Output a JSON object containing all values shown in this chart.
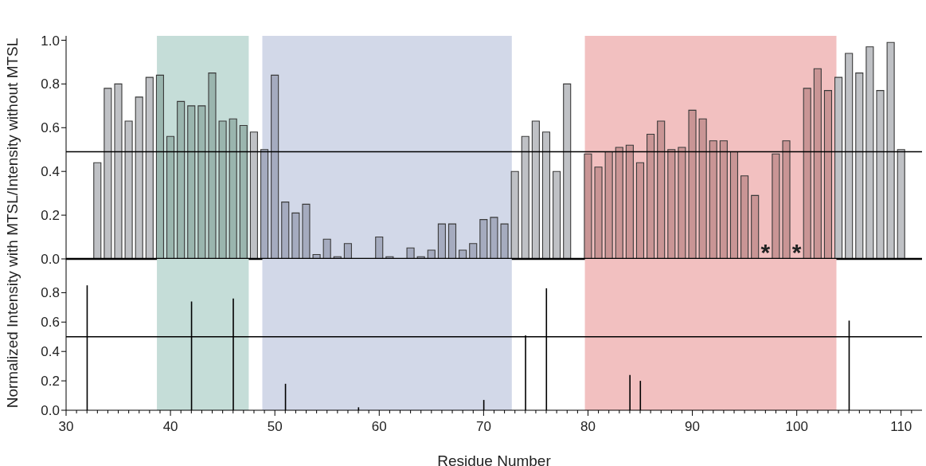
{
  "chart_data": [
    {
      "type": "bar",
      "ylabel": "Normalized Intensity with MTSL/Intensity without MTSL",
      "tick_labels": "y",
      "xlim": [
        30,
        112
      ],
      "ylim": [
        0,
        1.02
      ],
      "yticks": [
        {
          "value": 0,
          "label": "0.0"
        },
        {
          "value": 0.2,
          "label": "0.2"
        },
        {
          "value": 0.4,
          "label": "0.4"
        },
        {
          "value": 0.6,
          "label": "0.6"
        },
        {
          "value": 0.8,
          "label": "0.8"
        },
        {
          "value": 1,
          "label": "1.0"
        }
      ],
      "x": [
        33,
        34,
        35,
        36,
        37,
        38,
        39,
        40,
        41,
        42,
        43,
        44,
        45,
        46,
        47,
        48,
        49,
        50,
        51,
        52,
        53,
        54,
        55,
        56,
        57,
        60,
        61,
        63,
        64,
        65,
        66,
        67,
        68,
        69,
        70,
        71,
        72,
        73,
        74,
        75,
        76,
        77,
        78,
        80,
        81,
        82,
        83,
        84,
        85,
        86,
        87,
        88,
        89,
        90,
        91,
        92,
        93,
        94,
        95,
        96,
        98,
        99,
        101,
        102,
        103,
        104,
        105,
        106,
        107,
        108,
        109,
        110
      ],
      "series": [
        {
          "values": [
            0.44,
            0.78,
            0.8,
            0.63,
            0.74,
            0.83,
            0.84,
            0.56,
            0.72,
            0.7,
            0.7,
            0.85,
            0.63,
            0.64,
            0.61,
            0.58,
            0.5,
            0.84,
            0.26,
            0.21,
            0.25,
            0.02,
            0.09,
            0.01,
            0.07,
            0.1,
            0.01,
            0.05,
            0.01,
            0.04,
            0.16,
            0.16,
            0.04,
            0.07,
            0.18,
            0.19,
            0.16,
            0.4,
            0.56,
            0.63,
            0.58,
            0.4,
            0.8,
            0.48,
            0.42,
            0.49,
            0.51,
            0.52,
            0.44,
            0.57,
            0.63,
            0.5,
            0.51,
            0.68,
            0.64,
            0.54,
            0.54,
            0.49,
            0.38,
            0.29,
            0.48,
            0.54,
            0.78,
            0.87,
            0.77,
            0.83,
            0.94,
            0.85,
            0.97,
            0.77,
            0.99,
            0.5
          ],
          "colors": [
            "#bfc1c5",
            "#bfc1c5",
            "#bfc1c5",
            "#bfc1c5",
            "#bfc1c5",
            "#bfc1c5",
            "#9ab5ae",
            "#9ab5ae",
            "#9ab5ae",
            "#9ab5ae",
            "#9ab5ae",
            "#9ab5ae",
            "#9ab5ae",
            "#9ab5ae",
            "#9ab5ae",
            "#bfc1c5",
            "#a5abbf",
            "#a5abbf",
            "#a5abbf",
            "#a5abbf",
            "#a5abbf",
            "#a5abbf",
            "#a5abbf",
            "#a5abbf",
            "#a5abbf",
            "#a5abbf",
            "#a5abbf",
            "#a5abbf",
            "#a5abbf",
            "#a5abbf",
            "#a5abbf",
            "#a5abbf",
            "#a5abbf",
            "#a5abbf",
            "#a5abbf",
            "#a5abbf",
            "#a5abbf",
            "#bfc1c5",
            "#bfc1c5",
            "#bfc1c5",
            "#bfc1c5",
            "#bfc1c5",
            "#bfc1c5",
            "#c99595",
            "#c99595",
            "#c99595",
            "#c99595",
            "#c99595",
            "#c99595",
            "#c99595",
            "#c99595",
            "#c99595",
            "#c99595",
            "#c99595",
            "#c99595",
            "#c99595",
            "#c99595",
            "#c99595",
            "#c99595",
            "#c99595",
            "#c99595",
            "#c99595",
            "#c99595",
            "#c99595",
            "#c99595",
            "#bfc1c5",
            "#bfc1c5",
            "#bfc1c5",
            "#bfc1c5",
            "#bfc1c5",
            "#bfc1c5",
            "#bfc1c5"
          ]
        }
      ],
      "bands": [
        {
          "axis": "x",
          "from": 38.7,
          "to": 47.5,
          "color": "#c5ddd8"
        },
        {
          "axis": "x",
          "from": 48.8,
          "to": 72.7,
          "color": "#d2d8e8"
        },
        {
          "axis": "x",
          "from": 79.7,
          "to": 103.8,
          "color": "#f2c0c0"
        }
      ],
      "ref_lines": [
        {
          "axis": "y",
          "value": 0.49,
          "color": "#000000"
        }
      ],
      "annotations": [
        {
          "text": "*",
          "x": 97,
          "y": 0
        },
        {
          "text": "*",
          "x": 100,
          "y": 0
        }
      ]
    },
    {
      "type": "bar",
      "xlabel": "Residue Number",
      "xlim": [
        30,
        112
      ],
      "ylim": [
        0,
        1.03
      ],
      "xticks": [
        30,
        {
          "value": 31,
          "label": null
        },
        {
          "value": 32,
          "label": null
        },
        {
          "value": 33,
          "label": null
        },
        {
          "value": 34,
          "label": null
        },
        {
          "value": 35,
          "label": null
        },
        {
          "value": 36,
          "label": null
        },
        {
          "value": 37,
          "label": null
        },
        {
          "value": 38,
          "label": null
        },
        {
          "value": 39,
          "label": null
        },
        40,
        {
          "value": 41,
          "label": null
        },
        {
          "value": 42,
          "label": null
        },
        {
          "value": 43,
          "label": null
        },
        {
          "value": 44,
          "label": null
        },
        {
          "value": 45,
          "label": null
        },
        {
          "value": 46,
          "label": null
        },
        {
          "value": 47,
          "label": null
        },
        {
          "value": 48,
          "label": null
        },
        {
          "value": 49,
          "label": null
        },
        50,
        {
          "value": 51,
          "label": null
        },
        {
          "value": 52,
          "label": null
        },
        {
          "value": 53,
          "label": null
        },
        {
          "value": 54,
          "label": null
        },
        {
          "value": 55,
          "label": null
        },
        {
          "value": 56,
          "label": null
        },
        {
          "value": 57,
          "label": null
        },
        {
          "value": 58,
          "label": null
        },
        {
          "value": 59,
          "label": null
        },
        60,
        {
          "value": 61,
          "label": null
        },
        {
          "value": 62,
          "label": null
        },
        {
          "value": 63,
          "label": null
        },
        {
          "value": 64,
          "label": null
        },
        {
          "value": 65,
          "label": null
        },
        {
          "value": 66,
          "label": null
        },
        {
          "value": 67,
          "label": null
        },
        {
          "value": 68,
          "label": null
        },
        {
          "value": 69,
          "label": null
        },
        70,
        {
          "value": 71,
          "label": null
        },
        {
          "value": 72,
          "label": null
        },
        {
          "value": 73,
          "label": null
        },
        {
          "value": 74,
          "label": null
        },
        {
          "value": 75,
          "label": null
        },
        {
          "value": 76,
          "label": null
        },
        {
          "value": 77,
          "label": null
        },
        {
          "value": 78,
          "label": null
        },
        {
          "value": 79,
          "label": null
        },
        80,
        {
          "value": 81,
          "label": null
        },
        {
          "value": 82,
          "label": null
        },
        {
          "value": 83,
          "label": null
        },
        {
          "value": 84,
          "label": null
        },
        {
          "value": 85,
          "label": null
        },
        {
          "value": 86,
          "label": null
        },
        {
          "value": 87,
          "label": null
        },
        {
          "value": 88,
          "label": null
        },
        {
          "value": 89,
          "label": null
        },
        90,
        {
          "value": 91,
          "label": null
        },
        {
          "value": 92,
          "label": null
        },
        {
          "value": 93,
          "label": null
        },
        {
          "value": 94,
          "label": null
        },
        {
          "value": 95,
          "label": null
        },
        {
          "value": 96,
          "label": null
        },
        {
          "value": 97,
          "label": null
        },
        {
          "value": 98,
          "label": null
        },
        {
          "value": 99,
          "label": null
        },
        100,
        {
          "value": 101,
          "label": null
        },
        {
          "value": 102,
          "label": null
        },
        {
          "value": 103,
          "label": null
        },
        {
          "value": 104,
          "label": null
        },
        {
          "value": 105,
          "label": null
        },
        {
          "value": 106,
          "label": null
        },
        {
          "value": 107,
          "label": null
        },
        {
          "value": 108,
          "label": null
        },
        {
          "value": 109,
          "label": null
        },
        110,
        {
          "value": 111,
          "label": null
        }
      ],
      "yticks": [
        {
          "value": 0,
          "label": "0.0"
        },
        {
          "value": 0.2,
          "label": "0.2"
        },
        {
          "value": 0.4,
          "label": "0.4"
        },
        {
          "value": 0.6,
          "label": "0.6"
        },
        {
          "value": 0.8,
          "label": "0.8"
        }
      ],
      "x": [
        32,
        42,
        46,
        51,
        58,
        70,
        74,
        76,
        84,
        85,
        105
      ],
      "series": [
        {
          "values": [
            0.85,
            0.74,
            0.76,
            0.18,
            0.02,
            0.07,
            0.51,
            0.83,
            0.24,
            0.2,
            0.61
          ],
          "color": "#000000"
        }
      ],
      "bands": [
        {
          "axis": "x",
          "from": 38.7,
          "to": 47.5,
          "color": "#c5ddd8"
        },
        {
          "axis": "x",
          "from": 48.8,
          "to": 72.7,
          "color": "#d2d8e8"
        },
        {
          "axis": "x",
          "from": 79.7,
          "to": 103.8,
          "color": "#f2c0c0"
        }
      ],
      "ref_lines": [
        {
          "axis": "y",
          "value": 0.5,
          "color": "#000000"
        }
      ]
    }
  ]
}
